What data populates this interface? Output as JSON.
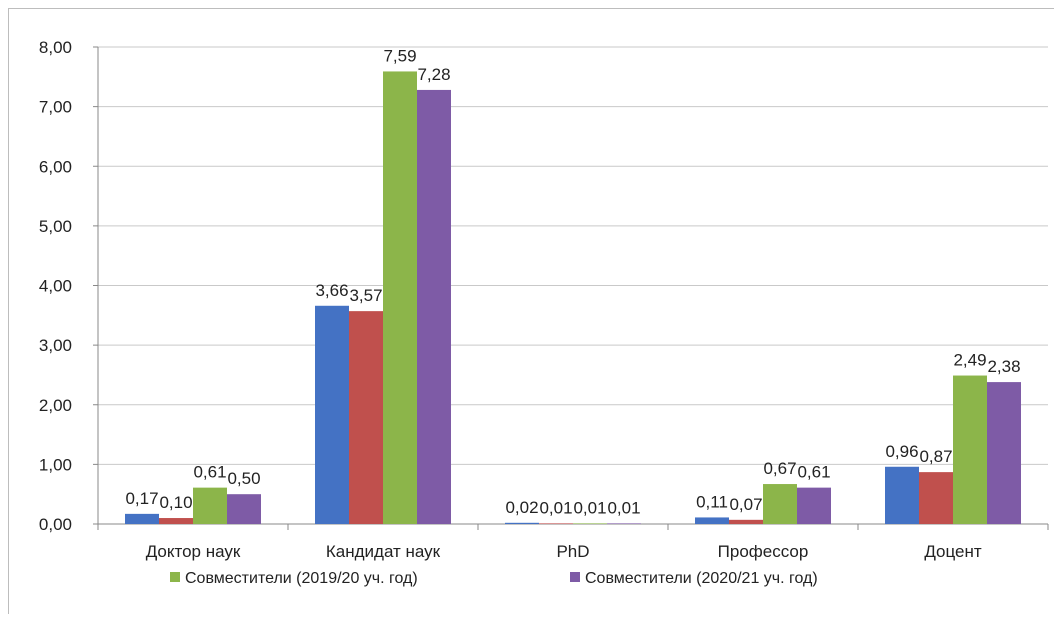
{
  "chart_data": {
    "type": "bar",
    "categories": [
      "Доктор наук",
      "Кандидат наук",
      "PhD",
      "Профессор",
      "Доцент"
    ],
    "series": [
      {
        "values": [
          0.17,
          3.66,
          0.02,
          0.11,
          0.96
        ],
        "color": "#4472c4"
      },
      {
        "values": [
          0.1,
          3.57,
          0.01,
          0.07,
          0.87
        ],
        "color": "#c0504d"
      },
      {
        "name": "Совместители (2019/20 уч. год)",
        "values": [
          0.61,
          7.59,
          0.01,
          0.67,
          2.49
        ],
        "color": "#8cb54a"
      },
      {
        "name": "Совместители (2020/21 уч. год)",
        "values": [
          0.5,
          7.28,
          0.01,
          0.61,
          2.38
        ],
        "color": "#7e5ba6"
      }
    ],
    "data_labels": [
      [
        "0,17",
        "3,66",
        "0,02",
        "0,11",
        "0,96"
      ],
      [
        "0,10",
        "3,57",
        "0,01",
        "0,07",
        "0,87"
      ],
      [
        "0,61",
        "7,59",
        "0,01",
        "0,67",
        "2,49"
      ],
      [
        "0,50",
        "7,28",
        "0,01",
        "0,61",
        "2,38"
      ]
    ],
    "ylim": [
      0,
      8
    ],
    "yticks": [
      "0,00",
      "1,00",
      "2,00",
      "3,00",
      "4,00",
      "5,00",
      "6,00",
      "7,00",
      "8,00"
    ],
    "grid": true,
    "legend_position": "bottom"
  }
}
